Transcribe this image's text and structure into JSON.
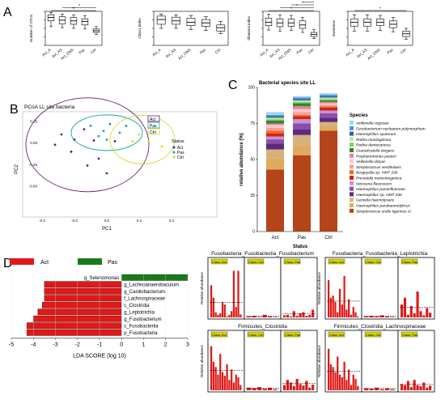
{
  "panel_letters": {
    "a": "A",
    "b": "B",
    "c": "C",
    "d": "D"
  },
  "chart_data": [
    {
      "id": "A-otus",
      "type": "box",
      "ylabel": "Number of OTUs",
      "categories": [
        "Act_A",
        "Act_AS",
        "Act_ONS",
        "Pas",
        "Ctrl"
      ],
      "boxes": [
        [
          0.55,
          0.72,
          0.82,
          0.9,
          0.97
        ],
        [
          0.52,
          0.63,
          0.74,
          0.84,
          0.92
        ],
        [
          0.5,
          0.62,
          0.72,
          0.82,
          0.9
        ],
        [
          0.48,
          0.6,
          0.7,
          0.78,
          0.87
        ],
        [
          0.32,
          0.38,
          0.43,
          0.48,
          0.55
        ]
      ],
      "significance": [
        "**",
        "*"
      ]
    },
    {
      "id": "A-chao1",
      "type": "box",
      "ylabel": "Chao1 index",
      "categories": [
        "Act_A",
        "Act_AS",
        "Act_ONS",
        "Pas",
        "Ctrl"
      ],
      "boxes": [
        [
          0.5,
          0.62,
          0.76,
          0.86,
          0.92
        ],
        [
          0.5,
          0.62,
          0.72,
          0.83,
          0.9
        ],
        [
          0.46,
          0.58,
          0.68,
          0.8,
          0.88
        ],
        [
          0.44,
          0.56,
          0.66,
          0.76,
          0.84
        ],
        [
          0.34,
          0.42,
          0.52,
          0.6,
          0.7
        ]
      ],
      "significance": []
    },
    {
      "id": "A-shannon",
      "type": "box",
      "ylabel": "Shannon index",
      "categories": [
        "Act_A",
        "Act_AS",
        "Act_ONS",
        "Pas",
        "Ctrl"
      ],
      "boxes": [
        [
          0.45,
          0.58,
          0.68,
          0.8,
          0.92
        ],
        [
          0.42,
          0.55,
          0.66,
          0.78,
          0.9
        ],
        [
          0.44,
          0.56,
          0.66,
          0.77,
          0.88
        ],
        [
          0.38,
          0.5,
          0.6,
          0.72,
          0.82
        ],
        [
          0.2,
          0.26,
          0.32,
          0.38,
          0.46
        ]
      ],
      "significance": [
        "*",
        "*",
        "*",
        "*"
      ]
    },
    {
      "id": "A-evenness",
      "type": "box",
      "ylabel": "Evenness",
      "categories": [
        "Act_A",
        "Act_AS",
        "Act_ONS",
        "Pas",
        "Ctrl"
      ],
      "boxes": [
        [
          0.42,
          0.56,
          0.68,
          0.78,
          0.9
        ],
        [
          0.42,
          0.56,
          0.68,
          0.78,
          0.9
        ],
        [
          0.44,
          0.58,
          0.68,
          0.78,
          0.88
        ],
        [
          0.4,
          0.52,
          0.62,
          0.72,
          0.82
        ],
        [
          0.18,
          0.26,
          0.34,
          0.42,
          0.5
        ]
      ],
      "significance": [
        "*"
      ]
    },
    {
      "id": "B",
      "type": "scatter",
      "title": "PCoA LL site bacteria",
      "xlabel": "PC1",
      "ylabel": "PC2",
      "xticks": [
        "-0.4",
        "-0.2",
        "0.0",
        "0.2",
        "0.4"
      ],
      "yticks": [
        "0.25",
        "0.00",
        "-0.25",
        "-0.50"
      ],
      "legend_title": "Status",
      "series": [
        {
          "name": "Act",
          "color": "#6a1f72",
          "points": [
            [
              -0.28,
              0.1
            ],
            [
              -0.2,
              0.04
            ],
            [
              -0.14,
              0.16
            ],
            [
              -0.08,
              0.03
            ],
            [
              -0.22,
              -0.1
            ],
            [
              -0.05,
              -0.18
            ],
            [
              0.0,
              -0.35
            ],
            [
              -0.32,
              -0.02
            ],
            [
              -0.12,
              -0.26
            ],
            [
              0.05,
              0.02
            ]
          ]
        },
        {
          "name": "Pas",
          "color": "#1aa6a6",
          "points": [
            [
              -0.1,
              0.2
            ],
            [
              -0.02,
              0.14
            ],
            [
              0.02,
              0.22
            ],
            [
              0.08,
              0.12
            ],
            [
              -0.05,
              0.08
            ],
            [
              0.12,
              0.2
            ],
            [
              0.0,
              0.04
            ]
          ]
        },
        {
          "name": "Ctrl",
          "color": "#d8d82a",
          "points": [
            [
              0.2,
              0.1
            ],
            [
              0.26,
              0.02
            ],
            [
              0.3,
              0.14
            ],
            [
              0.16,
              0.02
            ],
            [
              0.34,
              -0.04
            ]
          ]
        }
      ]
    },
    {
      "id": "C",
      "type": "bar",
      "stacked": true,
      "title": "Bacterial species site LL",
      "xlabel": "Status",
      "ylabel": "relative abundance (%)",
      "categories": [
        "Act",
        "Pas",
        "Ctrl"
      ],
      "yticks": [
        "0",
        "25",
        "50",
        "75",
        "100"
      ],
      "ylim": [
        0,
        100
      ],
      "legend_title": "Species",
      "series": [
        {
          "name": "Streptococcus oralis tigurinus cl.",
          "color": "#b4441a",
          "values": [
            43,
            53,
            70
          ]
        },
        {
          "name": "Haemophilus parahaemolyticus",
          "color": "#e0aa5e",
          "values": [
            8,
            7,
            3
          ]
        },
        {
          "name": "Gemella haemolysans",
          "color": "#d6b27a",
          "values": [
            6,
            7,
            3
          ]
        },
        {
          "name": "Haemophilus sp. HMT 036",
          "color": "#5b2a80",
          "values": [
            4,
            4,
            3
          ]
        },
        {
          "name": "Haemophilus parainfluenzae",
          "color": "#8a4fa8",
          "values": [
            3,
            4,
            3
          ]
        },
        {
          "name": "Neisseria flavescens",
          "color": "#c892d4",
          "values": [
            2,
            3,
            2
          ]
        },
        {
          "name": "Prevotella melaninogenica",
          "color": "#d02418",
          "values": [
            2,
            2,
            2
          ]
        },
        {
          "name": "Bergeyella sp. HMT 206",
          "color": "#f26a1e",
          "values": [
            2,
            1,
            1
          ]
        },
        {
          "name": "Streptococcus vestibularis",
          "color": "#f4a0a0",
          "values": [
            2,
            2,
            1
          ]
        },
        {
          "name": "Veillonella dispar",
          "color": "#f6c8c8",
          "values": [
            2,
            2,
            1
          ]
        },
        {
          "name": "Porphyromonas pasteri",
          "color": "#f07aa0",
          "values": [
            1,
            2,
            1
          ]
        },
        {
          "name": "Granulicatella elegans",
          "color": "#2a8a2a",
          "values": [
            2,
            2,
            1
          ]
        },
        {
          "name": "Rothia dentocariosa",
          "color": "#7ccf6a",
          "values": [
            1,
            1,
            1
          ]
        },
        {
          "name": "Rothia mucilaginosa",
          "color": "#c9e6a0",
          "values": [
            1,
            1,
            1
          ]
        },
        {
          "name": "Haemophilus sputorum",
          "color": "#2d5fa8",
          "values": [
            1,
            1,
            1
          ]
        },
        {
          "name": "Fusobacterium nucleatum polymorphum",
          "color": "#4a9ad6",
          "values": [
            1,
            1,
            1
          ]
        },
        {
          "name": "Veillonella rogosae",
          "color": "#a6d4ef",
          "values": [
            2,
            1,
            1
          ]
        }
      ]
    },
    {
      "id": "D-lda",
      "type": "bar",
      "orientation": "horizontal",
      "xlabel": "LDA SCORE (log 10)",
      "xticks": [
        "-5",
        "-4",
        "-3",
        "-2",
        "-1",
        "0",
        "1",
        "2",
        "3"
      ],
      "xlim": [
        -5,
        3
      ],
      "legend": [
        {
          "name": "Act",
          "color": "#e01818"
        },
        {
          "name": "Pas",
          "color": "#1a7a1a"
        }
      ],
      "categories": [
        "g_Selenomonas",
        "g_Lachnoanaerobaculum",
        "g_Cardiobacterium",
        "f_Lachnospiraceae",
        "c_Clostridia",
        "g_Leptotrichia",
        "g_Fusobacterium",
        "c_Fusobacteriia",
        "p_Fusobacteria"
      ],
      "values": [
        3.0,
        -3.5,
        -3.5,
        -3.5,
        -3.6,
        -3.8,
        -4.0,
        -4.3,
        -4.3
      ],
      "groups": [
        "Pas",
        "Act",
        "Act",
        "Act",
        "Act",
        "Act",
        "Act",
        "Act",
        "Act"
      ]
    },
    {
      "id": "D-fuso",
      "type": "bar",
      "title": "Fusobacteria_Fusobacteriia_Fusobacterium",
      "ylabel": "Relative abundance",
      "facets": [
        "Class: Act",
        "Class: Ctrl",
        "Class: Pas"
      ],
      "values": [
        [
          0.62,
          0.38,
          0.1,
          0.05,
          0.08,
          0.3,
          0.25,
          0.02,
          0.05,
          0.12,
          0.9,
          0.2,
          0.9,
          0.06
        ],
        [
          0.02,
          0.03,
          0.01,
          0.05,
          0.02,
          0.01
        ],
        [
          0.04,
          0.05,
          0.02,
          0.12,
          0.03,
          0.08,
          0.1,
          0.03,
          0.05,
          0.15
        ]
      ]
    },
    {
      "id": "D-lepto",
      "type": "bar",
      "title": "Fusobacteria_Fusobacteriia_Leptotrichia",
      "ylabel": "Relative abundance",
      "facets": [
        "Class: Act",
        "Class: Ctrl",
        "Class: Pas"
      ],
      "values": [
        [
          0.72,
          0.38,
          0.42,
          0.3,
          0.1,
          0.55,
          0.25,
          0.8,
          0.15,
          0.35,
          0.05,
          0.2,
          0.1,
          0.02
        ],
        [
          0.02,
          0.03,
          0.02,
          0.04,
          0.02,
          0.01
        ],
        [
          0.25,
          0.38,
          0.05,
          0.22,
          0.08,
          0.5,
          0.12,
          0.04,
          0.18,
          0.09
        ]
      ]
    },
    {
      "id": "D-clos",
      "type": "bar",
      "title": "Firmicutes_Clostridia",
      "ylabel": "Relative abundance",
      "facets": [
        "Class: Act",
        "Class: Ctrl",
        "Class: Pas"
      ],
      "values": [
        [
          0.85,
          0.55,
          0.45,
          0.3,
          0.7,
          0.35,
          0.28,
          0.5,
          0.2,
          0.4,
          0.15,
          0.3,
          0.25,
          0.1
        ],
        [
          0.05,
          0.04,
          0.06,
          0.03,
          0.05,
          0.02
        ],
        [
          0.1,
          0.2,
          0.15,
          0.08,
          0.22,
          0.12,
          0.09,
          0.18,
          0.05,
          0.11
        ]
      ]
    },
    {
      "id": "D-lachno",
      "type": "bar",
      "title": "Firmicutes_Clostridia_Lachnospiraceae",
      "ylabel": "Relative abundance",
      "facets": [
        "Class: Act",
        "Class: Ctrl",
        "Class: Pas"
      ],
      "values": [
        [
          0.8,
          0.5,
          0.45,
          0.35,
          0.65,
          0.3,
          0.25,
          0.55,
          0.2,
          0.4,
          0.1,
          0.3,
          0.22,
          0.08
        ],
        [
          0.04,
          0.03,
          0.05,
          0.02,
          0.04,
          0.02
        ],
        [
          0.12,
          0.1,
          0.18,
          0.06,
          0.2,
          0.1,
          0.08,
          0.15,
          0.05,
          0.09
        ]
      ]
    }
  ]
}
